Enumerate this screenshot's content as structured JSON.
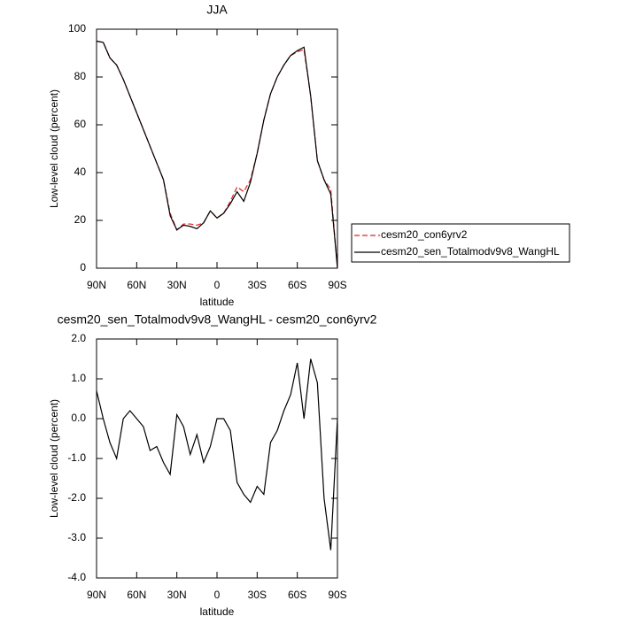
{
  "chart_data": [
    {
      "type": "line",
      "title": "JJA",
      "xlabel": "latitude",
      "ylabel": "Low-level cloud (percent)",
      "x": [
        90,
        85,
        80,
        75,
        70,
        65,
        60,
        55,
        50,
        45,
        40,
        35,
        30,
        25,
        20,
        15,
        10,
        5,
        0,
        -5,
        -10,
        -15,
        -20,
        -25,
        -30,
        -35,
        -40,
        -45,
        -50,
        -55,
        -60,
        -65,
        -70,
        -75,
        -80,
        -85,
        -90
      ],
      "xlim": [
        90,
        -90
      ],
      "xticks": [
        {
          "value": 90,
          "label": "90N"
        },
        {
          "value": 60,
          "label": "60N"
        },
        {
          "value": 30,
          "label": "30N"
        },
        0,
        {
          "value": -30,
          "label": "30S"
        },
        {
          "value": -60,
          "label": "60S"
        },
        {
          "value": -90,
          "label": "90S"
        }
      ],
      "ylim": [
        0,
        100
      ],
      "yticks": [
        0,
        20,
        40,
        60,
        80,
        100
      ],
      "legend": "right",
      "series": [
        {
          "name": "cesm20_con6yrv2",
          "color": "#e02020",
          "linestyle": "dashed",
          "values": [
            95,
            94.5,
            88,
            85,
            79,
            72,
            65,
            58,
            51,
            44,
            37,
            23,
            16,
            18.5,
            18.5,
            18,
            19,
            24,
            21,
            23,
            28,
            34,
            32,
            37,
            48,
            62,
            73,
            80,
            85,
            89,
            90.5,
            91.5,
            72,
            45,
            37,
            33,
            0
          ]
        },
        {
          "name": "cesm20_sen_Totalmodv9v8_WangHL",
          "color": "#000000",
          "linestyle": "solid",
          "values": [
            95,
            94.5,
            88,
            85,
            79,
            72,
            65,
            58,
            51,
            44,
            37,
            22,
            16,
            18,
            17.5,
            16.5,
            19,
            24,
            21,
            23,
            27,
            32,
            28,
            36,
            48,
            62,
            73,
            80,
            85,
            89,
            91,
            92.5,
            72,
            45,
            37,
            31,
            0
          ]
        }
      ]
    },
    {
      "type": "line",
      "title": "cesm20_sen_Totalmodv9v8_WangHL - cesm20_con6yrv2",
      "xlabel": "latitude",
      "ylabel": "Low-level cloud (percent)",
      "x": [
        90,
        85,
        80,
        75,
        70,
        65,
        60,
        55,
        50,
        45,
        40,
        35,
        30,
        25,
        20,
        15,
        10,
        5,
        0,
        -5,
        -10,
        -15,
        -20,
        -25,
        -30,
        -35,
        -40,
        -45,
        -50,
        -55,
        -60,
        -65,
        -70,
        -75,
        -80,
        -85,
        -90
      ],
      "xlim": [
        90,
        -90
      ],
      "xticks": [
        {
          "value": 90,
          "label": "90N"
        },
        {
          "value": 60,
          "label": "60N"
        },
        {
          "value": 30,
          "label": "30N"
        },
        0,
        {
          "value": -30,
          "label": "30S"
        },
        {
          "value": -60,
          "label": "60S"
        },
        {
          "value": -90,
          "label": "90S"
        }
      ],
      "ylim": [
        -4,
        2
      ],
      "yticks": [
        {
          "value": -4,
          "label": "-4.0"
        },
        {
          "value": -3,
          "label": "-3.0"
        },
        {
          "value": -2,
          "label": "-2.0"
        },
        {
          "value": -1,
          "label": "-1.0"
        },
        {
          "value": 0,
          "label": "0.0"
        },
        {
          "value": 1,
          "label": "1.0"
        },
        {
          "value": 2,
          "label": "2.0"
        }
      ],
      "series": [
        {
          "color": "#000000",
          "linestyle": "solid",
          "values": [
            0.7,
            0.0,
            -0.6,
            -1.0,
            0.0,
            0.2,
            0.0,
            -0.2,
            -0.8,
            -0.7,
            -1.1,
            -1.4,
            0.1,
            -0.2,
            -0.9,
            -0.4,
            -1.1,
            -0.7,
            0.0,
            0.0,
            -0.3,
            -1.6,
            -1.9,
            -2.1,
            -1.7,
            -1.9,
            -0.6,
            -0.3,
            0.2,
            0.6,
            1.4,
            0.0,
            1.5,
            0.9,
            -2.0,
            -3.3,
            0.0
          ]
        }
      ]
    }
  ]
}
